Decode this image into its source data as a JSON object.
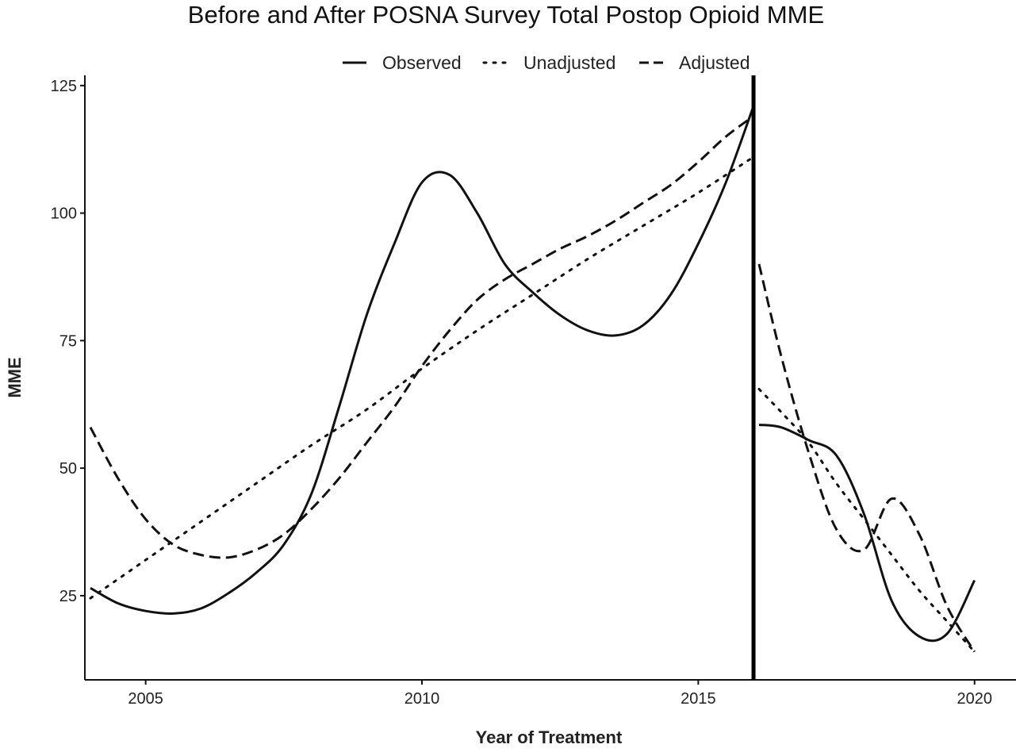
{
  "chart_data": {
    "type": "line",
    "title": "Before and After POSNA Survey Total Postop Opioid MME",
    "xlabel": "Year of Treatment",
    "ylabel": "MME",
    "xlim": [
      2003.9,
      2020.75
    ],
    "ylim": [
      8.5,
      127
    ],
    "x_ticks": [
      2005,
      2010,
      2015,
      2020
    ],
    "y_ticks": [
      25,
      50,
      75,
      100,
      125
    ],
    "grid": false,
    "legend_position": "top",
    "intervention_year": 2016,
    "series": [
      {
        "name": "Observed",
        "style": "solid",
        "segments": [
          {
            "x": [
              2004,
              2004.5,
              2005,
              2005.5,
              2006,
              2006.5,
              2007,
              2007.5,
              2008,
              2008.5,
              2009,
              2009.5,
              2010,
              2010.5,
              2011,
              2011.5,
              2012,
              2012.5,
              2013,
              2013.5,
              2014,
              2014.5,
              2015,
              2015.5,
              2016
            ],
            "y": [
              26.5,
              23.5,
              22,
              21.5,
              22.5,
              25.5,
              29.5,
              35,
              45,
              62,
              80,
              94,
              106,
              107.5,
              100,
              90,
              84.5,
              80,
              77,
              76,
              78,
              84,
              94,
              106,
              121
            ]
          },
          {
            "x": [
              2016.1,
              2016.5,
              2017,
              2017.5,
              2018,
              2018.5,
              2019,
              2019.5,
              2020
            ],
            "y": [
              58.5,
              58,
              55.5,
              52.5,
              41,
              24,
              17,
              17.5,
              28
            ]
          }
        ]
      },
      {
        "name": "Unadjusted",
        "style": "dotted",
        "segments": [
          {
            "x": [
              2004,
              2005,
              2006,
              2007,
              2008,
              2009,
              2010,
              2011,
              2012,
              2013,
              2014,
              2015,
              2016
            ],
            "y": [
              24.5,
              32,
              39.5,
              47,
              54.5,
              61.5,
              69.5,
              77,
              84,
              91,
              97.5,
              104,
              111
            ]
          },
          {
            "x": [
              2016.1,
              2016.5,
              2017,
              2017.5,
              2018,
              2018.5,
              2019,
              2019.5,
              2020
            ],
            "y": [
              65.5,
              61,
              55,
              47,
              40,
              33,
              26,
              20,
              14
            ]
          }
        ]
      },
      {
        "name": "Adjusted",
        "style": "dashed",
        "segments": [
          {
            "x": [
              2004,
              2004.5,
              2005,
              2005.5,
              2006,
              2006.5,
              2007,
              2007.5,
              2008,
              2008.5,
              2009,
              2009.5,
              2010,
              2010.5,
              2011,
              2011.5,
              2012,
              2012.5,
              2013,
              2013.5,
              2014,
              2014.5,
              2015,
              2015.5,
              2016
            ],
            "y": [
              58,
              48,
              40,
              35,
              33,
              32.5,
              34,
              37,
              42,
              48,
              55,
              62,
              70,
              77,
              83,
              87,
              90,
              93,
              95.5,
              98.5,
              102,
              105.5,
              110,
              115,
              119
            ]
          },
          {
            "x": [
              2016.1,
              2016.5,
              2017,
              2017.5,
              2018,
              2018.5,
              2019,
              2019.5,
              2020
            ],
            "y": [
              90,
              72,
              53,
              38,
              34,
              44,
              37,
              23,
              14
            ]
          }
        ]
      }
    ]
  }
}
